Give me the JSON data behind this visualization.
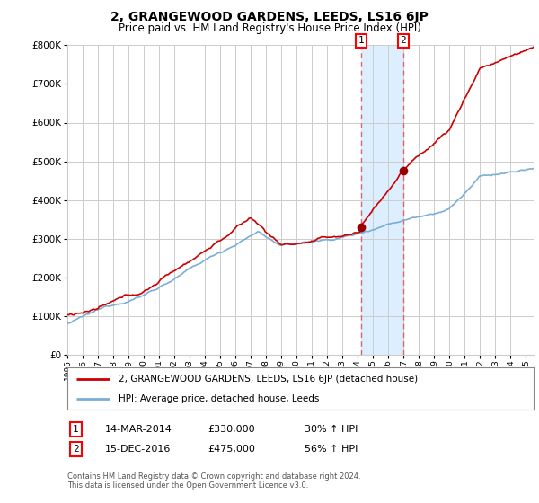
{
  "title": "2, GRANGEWOOD GARDENS, LEEDS, LS16 6JP",
  "subtitle": "Price paid vs. HM Land Registry's House Price Index (HPI)",
  "property_label": "2, GRANGEWOOD GARDENS, LEEDS, LS16 6JP (detached house)",
  "hpi_label": "HPI: Average price, detached house, Leeds",
  "footnote_line1": "Contains HM Land Registry data © Crown copyright and database right 2024.",
  "footnote_line2": "This data is licensed under the Open Government Licence v3.0.",
  "sale1_date": "14-MAR-2014",
  "sale1_price": "£330,000",
  "sale1_pct": "30% ↑ HPI",
  "sale2_date": "15-DEC-2016",
  "sale2_price": "£475,000",
  "sale2_pct": "56% ↑ HPI",
  "sale1_year": 2014.21,
  "sale2_year": 2016.96,
  "sale1_val": 330000,
  "sale2_val": 475000,
  "ylim": [
    0,
    800000
  ],
  "xlim_start": 1995.0,
  "xlim_end": 2025.5,
  "property_color": "#cc0000",
  "hpi_color": "#7aaed6",
  "vline_color": "#dd6666",
  "span_color": "#ddeeff",
  "background_color": "#ffffff",
  "grid_color": "#cccccc"
}
